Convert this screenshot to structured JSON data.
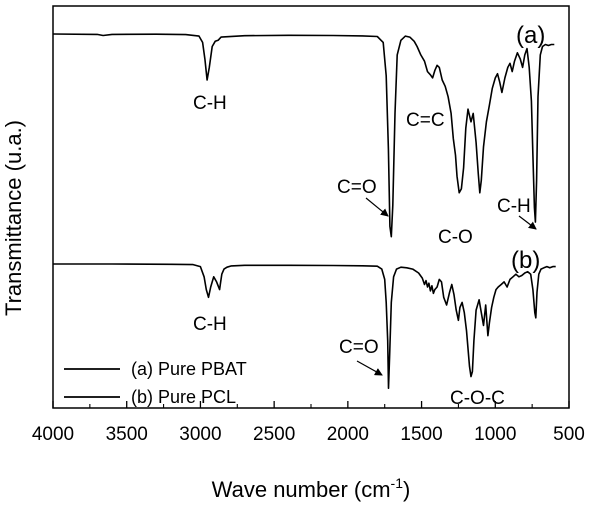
{
  "chart_data": {
    "type": "line",
    "xlabel": "Wave number (cm",
    "xlabel_sup": "-1",
    "xlabel_end": ")",
    "ylabel": "Transmittance (u.a.)",
    "xlim": [
      4000,
      500
    ],
    "x_ticks": [
      "4000",
      "3500",
      "3000",
      "2500",
      "2000",
      "1500",
      "1000",
      "500"
    ],
    "x_tick_values": [
      4000,
      3500,
      3000,
      2500,
      2000,
      1500,
      1000,
      500
    ],
    "grid": false,
    "legend": {
      "placement": "lower-left",
      "entries": [
        "(a) Pure PBAT",
        "(b) Pure PCL"
      ]
    },
    "series": [
      {
        "name": "(a) Pure PBAT",
        "panel_label": "(a)",
        "x": [
          4000,
          3700,
          3660,
          3600,
          3300,
          3100,
          3010,
          2985,
          2970,
          2955,
          2940,
          2920,
          2900,
          2880,
          2860,
          2700,
          2400,
          2100,
          1900,
          1800,
          1760,
          1740,
          1725,
          1715,
          1705,
          1695,
          1680,
          1665,
          1640,
          1610,
          1580,
          1550,
          1530,
          1505,
          1480,
          1460,
          1440,
          1425,
          1410,
          1395,
          1380,
          1360,
          1340,
          1320,
          1300,
          1285,
          1270,
          1260,
          1245,
          1230,
          1215,
          1200,
          1185,
          1165,
          1150,
          1130,
          1115,
          1105,
          1095,
          1080,
          1060,
          1040,
          1020,
          1000,
          985,
          970,
          955,
          935,
          915,
          900,
          885,
          870,
          850,
          830,
          815,
          800,
          785,
          770,
          755,
          745,
          735,
          728,
          720,
          710,
          695,
          680,
          660,
          640,
          620,
          600
        ],
        "y": [
          100,
          99.8,
          99.3,
          99.8,
          99.9,
          99.7,
          99,
          96,
          88,
          78,
          84,
          94,
          96.5,
          97,
          98.5,
          99.2,
          99.4,
          99.3,
          99.1,
          98.8,
          96,
          80,
          45,
          8,
          3,
          18,
          62,
          90,
          97,
          99,
          98.5,
          96.5,
          94,
          90,
          87,
          82,
          80.5,
          79,
          82.5,
          85,
          84,
          78,
          75,
          70,
          62,
          50,
          42,
          32,
          24,
          26,
          36,
          55,
          64,
          58,
          62,
          48,
          33,
          24,
          30,
          46,
          58,
          66,
          74,
          79,
          81,
          77,
          72,
          79,
          84,
          86,
          82,
          87,
          91,
          88,
          84,
          90,
          93,
          84,
          68,
          42,
          17,
          10,
          30,
          70,
          90,
          94,
          95,
          94.5,
          95,
          95
        ]
      },
      {
        "name": "(b) Pure PCL",
        "panel_label": "(b)",
        "x": [
          4000,
          3600,
          3200,
          3050,
          3000,
          2975,
          2960,
          2945,
          2930,
          2910,
          2890,
          2870,
          2865,
          2855,
          2840,
          2820,
          2790,
          2700,
          2400,
          2100,
          1900,
          1800,
          1770,
          1750,
          1740,
          1730,
          1724,
          1716,
          1705,
          1690,
          1670,
          1640,
          1600,
          1560,
          1520,
          1495,
          1480,
          1470,
          1460,
          1450,
          1440,
          1430,
          1420,
          1410,
          1395,
          1380,
          1365,
          1350,
          1330,
          1310,
          1295,
          1280,
          1265,
          1250,
          1240,
          1225,
          1210,
          1195,
          1185,
          1175,
          1165,
          1155,
          1145,
          1130,
          1110,
          1095,
          1080,
          1065,
          1050,
          1040,
          1025,
          1010,
          995,
          980,
          960,
          940,
          920,
          900,
          880,
          860,
          840,
          820,
          800,
          780,
          760,
          745,
          732,
          725,
          717,
          705,
          690,
          670,
          650,
          630,
          610,
          590
        ],
        "y": [
          100,
          100,
          99.8,
          99.5,
          98,
          90,
          80,
          74,
          82,
          90,
          86,
          80,
          84,
          92,
          96,
          97.5,
          98.5,
          99,
          99,
          98.8,
          98.6,
          98.3,
          96,
          88,
          70,
          40,
          3,
          30,
          70,
          90,
          96,
          97.5,
          97,
          96,
          93,
          89,
          84,
          87,
          82,
          85,
          79,
          83,
          77,
          80,
          82,
          88,
          86,
          74,
          68,
          78,
          84,
          76,
          64,
          56,
          66,
          70,
          62,
          48,
          34,
          20,
          12,
          16,
          40,
          64,
          72,
          62,
          52,
          68,
          44,
          54,
          66,
          74,
          80,
          82,
          84,
          86,
          82,
          88,
          90,
          92,
          90,
          91,
          93,
          94,
          92,
          80,
          62,
          58,
          78,
          92,
          96,
          97,
          98,
          97,
          98,
          98
        ]
      }
    ],
    "annotations": [
      {
        "text": "C-H",
        "series": 0
      },
      {
        "text": "C=O",
        "series": 0
      },
      {
        "text": "C=C",
        "series": 0
      },
      {
        "text": "C-O",
        "series": 0
      },
      {
        "text": "C-H",
        "series": 0
      },
      {
        "text": "C-H",
        "series": 1
      },
      {
        "text": "C=O",
        "series": 1
      },
      {
        "text": "C-O-C",
        "series": 1
      }
    ]
  }
}
